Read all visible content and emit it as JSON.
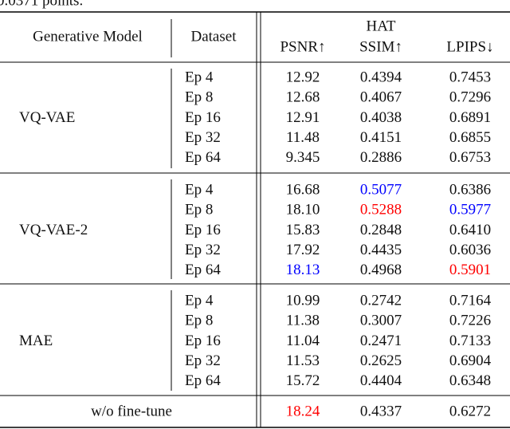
{
  "caption_tail": "0.0371 points.",
  "table": {
    "header": {
      "model": "Generative Model",
      "dataset": "Dataset",
      "group": "HAT",
      "psnr": "PSNR↑",
      "ssim": "SSIM↑",
      "lpips": "LPIPS↓"
    },
    "groups": [
      {
        "model": "VQ-VAE",
        "rows": [
          {
            "dataset": "Ep 4",
            "psnr": "12.92",
            "ssim": "0.4394",
            "lpips": "0.7453"
          },
          {
            "dataset": "Ep 8",
            "psnr": "12.68",
            "ssim": "0.4067",
            "lpips": "0.7296"
          },
          {
            "dataset": "Ep 16",
            "psnr": "12.91",
            "ssim": "0.4038",
            "lpips": "0.6891"
          },
          {
            "dataset": "Ep 32",
            "psnr": "11.48",
            "ssim": "0.4151",
            "lpips": "0.6855"
          },
          {
            "dataset": "Ep 64",
            "psnr": "9.345",
            "ssim": "0.2886",
            "lpips": "0.6753"
          }
        ]
      },
      {
        "model": "VQ-VAE-2",
        "rows": [
          {
            "dataset": "Ep 4",
            "psnr": "16.68",
            "ssim": "0.5077",
            "lpips": "0.6386",
            "colors": {
              "ssim": "#0000ff"
            }
          },
          {
            "dataset": "Ep 8",
            "psnr": "18.10",
            "ssim": "0.5288",
            "lpips": "0.5977",
            "colors": {
              "ssim": "#ff0000",
              "lpips": "#0000ff"
            }
          },
          {
            "dataset": "Ep 16",
            "psnr": "15.83",
            "ssim": "0.2848",
            "lpips": "0.6410"
          },
          {
            "dataset": "Ep 32",
            "psnr": "17.92",
            "ssim": "0.4435",
            "lpips": "0.6036"
          },
          {
            "dataset": "Ep 64",
            "psnr": "18.13",
            "ssim": "0.4968",
            "lpips": "0.5901",
            "colors": {
              "psnr": "#0000ff",
              "lpips": "#ff0000"
            }
          }
        ]
      },
      {
        "model": "MAE",
        "rows": [
          {
            "dataset": "Ep 4",
            "psnr": "10.99",
            "ssim": "0.2742",
            "lpips": "0.7164"
          },
          {
            "dataset": "Ep 8",
            "psnr": "11.38",
            "ssim": "0.3007",
            "lpips": "0.7226"
          },
          {
            "dataset": "Ep 16",
            "psnr": "11.04",
            "ssim": "0.2471",
            "lpips": "0.7133"
          },
          {
            "dataset": "Ep 32",
            "psnr": "11.53",
            "ssim": "0.2625",
            "lpips": "0.6904"
          },
          {
            "dataset": "Ep 64",
            "psnr": "15.72",
            "ssim": "0.4404",
            "lpips": "0.6348"
          }
        ]
      }
    ],
    "baseline": {
      "label": "w/o fine-tune",
      "psnr": "18.24",
      "ssim": "0.4337",
      "lpips": "0.6272",
      "colors": {
        "psnr": "#ff0000"
      }
    }
  }
}
